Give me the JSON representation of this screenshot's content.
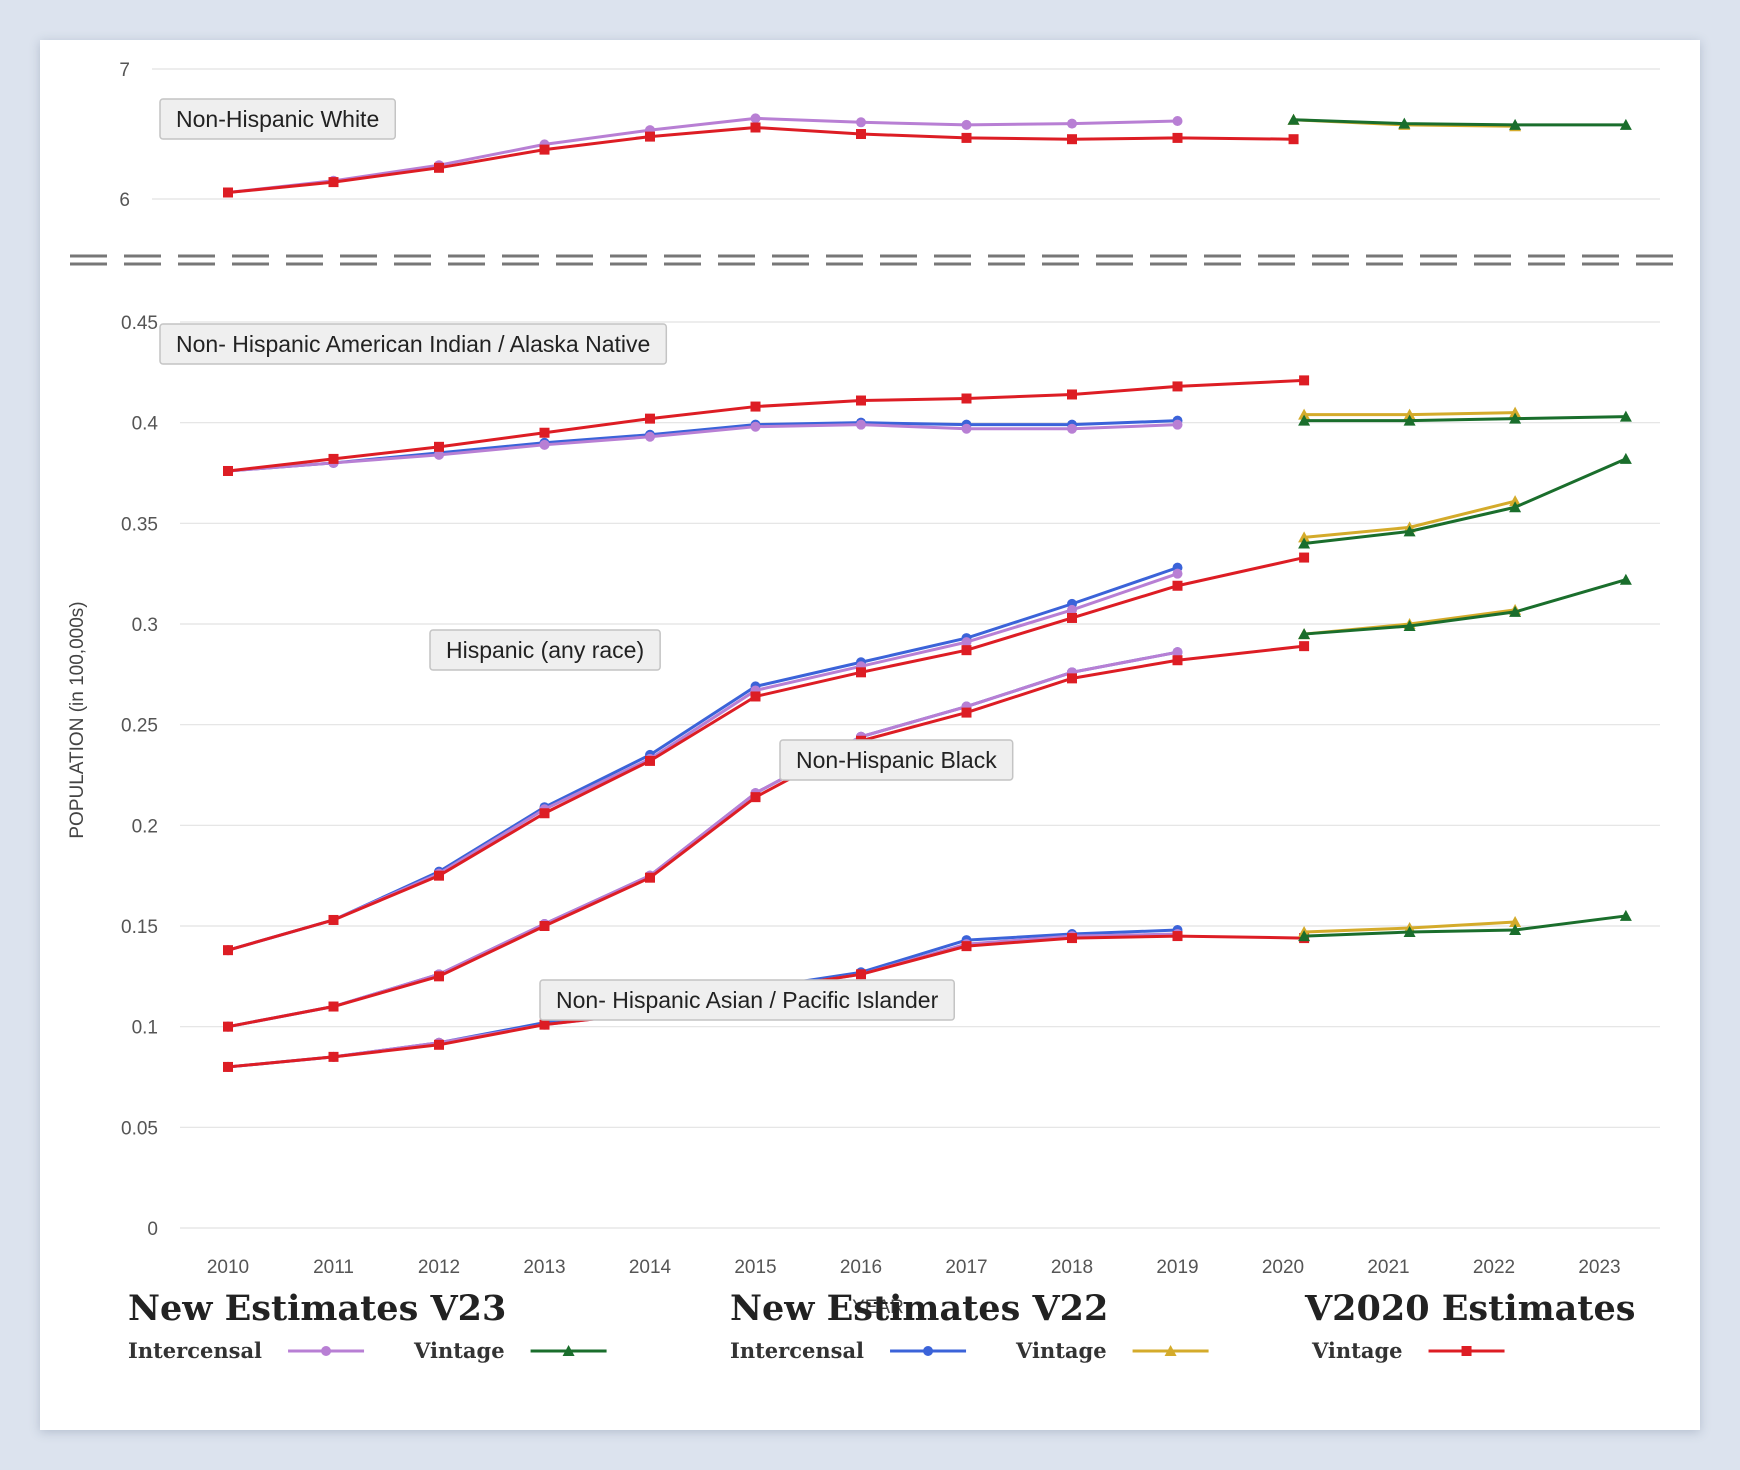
{
  "chart_data": {
    "type": "line",
    "ylabel": "POPULATION (in 100,000s)",
    "xlabel": "YEAR",
    "x_ticks": [
      "2010",
      "2011",
      "2012",
      "2013",
      "2014",
      "2015",
      "2016",
      "2017",
      "2018",
      "2019",
      "2020",
      "2021",
      "2022",
      "2023"
    ],
    "top_panel": {
      "ylim": [
        6,
        7
      ],
      "y_ticks": [
        "7",
        "6"
      ]
    },
    "bottom_panel": {
      "ylim": [
        0,
        0.45
      ],
      "y_ticks": [
        "0.45",
        "0.4",
        "0.35",
        "0.3",
        "0.25",
        "0.2",
        "0.15",
        "0.1",
        "0.05",
        "0"
      ]
    },
    "colors": {
      "v23_intercensal": "#b87fd4",
      "v23_vintage": "#1a6e2c",
      "v22_intercensal": "#3b63d9",
      "v22_vintage": "#d4ab2b",
      "v2020_vintage": "#dd1d24"
    },
    "groups": [
      {
        "label": "Non-Hispanic White",
        "panel": "top",
        "series": [
          {
            "key": "v23_intercensal",
            "x": [
              2010,
              2011,
              2012,
              2013,
              2014,
              2015,
              2016,
              2017,
              2018,
              2019
            ],
            "y": [
              6.05,
              6.14,
              6.26,
              6.42,
              6.53,
              6.62,
              6.59,
              6.57,
              6.58,
              6.6
            ]
          },
          {
            "key": "v2020_vintage",
            "x": [
              2010,
              2011,
              2012,
              2013,
              2014,
              2015,
              2016,
              2017,
              2018,
              2019,
              2020.1
            ],
            "y": [
              6.05,
              6.13,
              6.24,
              6.38,
              6.48,
              6.55,
              6.5,
              6.47,
              6.46,
              6.47,
              6.46
            ]
          },
          {
            "key": "v23_vintage",
            "x": [
              2020.1,
              2021.15,
              2022.2,
              2023.25
            ],
            "y": [
              6.61,
              6.58,
              6.57,
              6.57
            ]
          },
          {
            "key": "v22_vintage",
            "x": [
              2020.1,
              2021.15,
              2022.2
            ],
            "y": [
              6.61,
              6.57,
              6.56
            ]
          }
        ]
      },
      {
        "label": "Non- Hispanic American Indian / Alaska Native",
        "panel": "bottom",
        "series": [
          {
            "key": "v22_intercensal",
            "x": [
              2010,
              2011,
              2012,
              2013,
              2014,
              2015,
              2016,
              2017,
              2018,
              2019
            ],
            "y": [
              0.376,
              0.38,
              0.385,
              0.39,
              0.394,
              0.399,
              0.4,
              0.399,
              0.399,
              0.401
            ]
          },
          {
            "key": "v23_intercensal",
            "x": [
              2010,
              2011,
              2012,
              2013,
              2014,
              2015,
              2016,
              2017,
              2018,
              2019
            ],
            "y": [
              0.376,
              0.38,
              0.384,
              0.389,
              0.393,
              0.398,
              0.399,
              0.397,
              0.397,
              0.399
            ]
          },
          {
            "key": "v2020_vintage",
            "x": [
              2010,
              2011,
              2012,
              2013,
              2014,
              2015,
              2016,
              2017,
              2018,
              2019,
              2020.2
            ],
            "y": [
              0.376,
              0.382,
              0.388,
              0.395,
              0.402,
              0.408,
              0.411,
              0.412,
              0.414,
              0.418,
              0.421
            ]
          },
          {
            "key": "v22_vintage",
            "x": [
              2020.2,
              2021.2,
              2022.2
            ],
            "y": [
              0.404,
              0.404,
              0.405
            ]
          },
          {
            "key": "v23_vintage",
            "x": [
              2020.2,
              2021.2,
              2022.2,
              2023.25
            ],
            "y": [
              0.401,
              0.401,
              0.402,
              0.403
            ]
          }
        ]
      },
      {
        "label": "Hispanic (any race)",
        "panel": "bottom",
        "series": [
          {
            "key": "v22_intercensal",
            "x": [
              2010,
              2011,
              2012,
              2013,
              2014,
              2015,
              2016,
              2017,
              2018,
              2019
            ],
            "y": [
              0.138,
              0.153,
              0.177,
              0.209,
              0.235,
              0.269,
              0.281,
              0.293,
              0.31,
              0.328
            ]
          },
          {
            "key": "v23_intercensal",
            "x": [
              2010,
              2011,
              2012,
              2013,
              2014,
              2015,
              2016,
              2017,
              2018,
              2019
            ],
            "y": [
              0.138,
              0.153,
              0.176,
              0.208,
              0.233,
              0.267,
              0.279,
              0.291,
              0.307,
              0.325
            ]
          },
          {
            "key": "v2020_vintage",
            "x": [
              2010,
              2011,
              2012,
              2013,
              2014,
              2015,
              2016,
              2017,
              2018,
              2019,
              2020.2
            ],
            "y": [
              0.138,
              0.153,
              0.175,
              0.206,
              0.232,
              0.264,
              0.276,
              0.287,
              0.303,
              0.319,
              0.333
            ]
          },
          {
            "key": "v22_vintage",
            "x": [
              2020.2,
              2021.2,
              2022.2
            ],
            "y": [
              0.343,
              0.348,
              0.361
            ]
          },
          {
            "key": "v23_vintage",
            "x": [
              2020.2,
              2021.2,
              2022.2,
              2023.25
            ],
            "y": [
              0.34,
              0.346,
              0.358,
              0.382
            ]
          }
        ]
      },
      {
        "label": "Non-Hispanic Black",
        "panel": "bottom",
        "series": [
          {
            "key": "v22_intercensal",
            "x": [
              2010,
              2011,
              2012,
              2013,
              2014,
              2015,
              2016,
              2017,
              2018,
              2019
            ],
            "y": [
              0.1,
              0.11,
              0.126,
              0.151,
              0.175,
              0.216,
              0.244,
              0.259,
              0.276,
              0.286
            ]
          },
          {
            "key": "v23_intercensal",
            "x": [
              2010,
              2011,
              2012,
              2013,
              2014,
              2015,
              2016,
              2017,
              2018,
              2019
            ],
            "y": [
              0.1,
              0.11,
              0.126,
              0.151,
              0.175,
              0.216,
              0.244,
              0.259,
              0.276,
              0.286
            ]
          },
          {
            "key": "v2020_vintage",
            "x": [
              2010,
              2011,
              2012,
              2013,
              2014,
              2015,
              2016,
              2017,
              2018,
              2019,
              2020.2
            ],
            "y": [
              0.1,
              0.11,
              0.125,
              0.15,
              0.174,
              0.214,
              0.242,
              0.256,
              0.273,
              0.282,
              0.289
            ]
          },
          {
            "key": "v22_vintage",
            "x": [
              2020.2,
              2021.2,
              2022.2
            ],
            "y": [
              0.295,
              0.3,
              0.307
            ]
          },
          {
            "key": "v23_vintage",
            "x": [
              2020.2,
              2021.2,
              2022.2,
              2023.25
            ],
            "y": [
              0.295,
              0.299,
              0.306,
              0.322
            ]
          }
        ]
      },
      {
        "label": "Non- Hispanic Asian / Pacific Islander",
        "panel": "bottom",
        "series": [
          {
            "key": "v22_intercensal",
            "x": [
              2010,
              2011,
              2012,
              2013,
              2014,
              2015,
              2016,
              2017,
              2018,
              2019
            ],
            "y": [
              0.08,
              0.085,
              0.092,
              0.102,
              0.108,
              0.119,
              0.127,
              0.143,
              0.146,
              0.148
            ]
          },
          {
            "key": "v23_intercensal",
            "x": [
              2010,
              2011,
              2012,
              2013,
              2014,
              2015,
              2016,
              2017,
              2018,
              2019
            ],
            "y": [
              0.08,
              0.085,
              0.092,
              0.101,
              0.107,
              0.118,
              0.126,
              0.141,
              0.145,
              0.146
            ]
          },
          {
            "key": "v2020_vintage",
            "x": [
              2010,
              2011,
              2012,
              2013,
              2014,
              2015,
              2016,
              2017,
              2018,
              2019,
              2020.2
            ],
            "y": [
              0.08,
              0.085,
              0.091,
              0.101,
              0.107,
              0.118,
              0.126,
              0.14,
              0.144,
              0.145,
              0.144
            ]
          },
          {
            "key": "v22_vintage",
            "x": [
              2020.2,
              2021.2,
              2022.2
            ],
            "y": [
              0.147,
              0.149,
              0.152
            ]
          },
          {
            "key": "v23_vintage",
            "x": [
              2020.2,
              2021.2,
              2022.2,
              2023.25
            ],
            "y": [
              0.145,
              0.147,
              0.148,
              0.155
            ]
          }
        ]
      }
    ],
    "legend": [
      {
        "title": "New Estimates V23",
        "entries": [
          {
            "label": "Intercensal",
            "key": "v23_intercensal",
            "marker": "circle"
          },
          {
            "label": "Vintage",
            "key": "v23_vintage",
            "marker": "triangle"
          }
        ]
      },
      {
        "title": "New Estimates V22",
        "entries": [
          {
            "label": "Intercensal",
            "key": "v22_intercensal",
            "marker": "circle"
          },
          {
            "label": "Vintage",
            "key": "v22_vintage",
            "marker": "triangle"
          }
        ]
      },
      {
        "title": "V2020 Estimates",
        "entries": [
          {
            "label": "Vintage",
            "key": "v2020_vintage",
            "marker": "square"
          }
        ]
      }
    ]
  }
}
